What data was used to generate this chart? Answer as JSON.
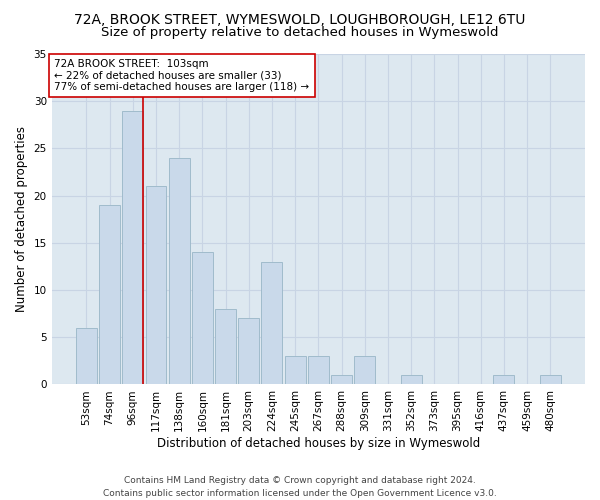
{
  "title_line1": "72A, BROOK STREET, WYMESWOLD, LOUGHBOROUGH, LE12 6TU",
  "title_line2": "Size of property relative to detached houses in Wymeswold",
  "xlabel": "Distribution of detached houses by size in Wymeswold",
  "ylabel": "Number of detached properties",
  "categories": [
    "53sqm",
    "74sqm",
    "96sqm",
    "117sqm",
    "138sqm",
    "160sqm",
    "181sqm",
    "203sqm",
    "224sqm",
    "245sqm",
    "267sqm",
    "288sqm",
    "309sqm",
    "331sqm",
    "352sqm",
    "373sqm",
    "395sqm",
    "416sqm",
    "437sqm",
    "459sqm",
    "480sqm"
  ],
  "values": [
    6,
    19,
    29,
    21,
    24,
    14,
    8,
    7,
    13,
    3,
    3,
    1,
    3,
    0,
    1,
    0,
    0,
    0,
    1,
    0,
    1
  ],
  "bar_color": "#c9d9ea",
  "bar_edge_color": "#a0bbcc",
  "vline_x_index": 2,
  "vline_color": "#cc0000",
  "annotation_line1": "72A BROOK STREET:  103sqm",
  "annotation_line2": "← 22% of detached houses are smaller (33)",
  "annotation_line3": "77% of semi-detached houses are larger (118) →",
  "annotation_box_color": "#ffffff",
  "annotation_box_edge_color": "#cc0000",
  "ylim": [
    0,
    35
  ],
  "yticks": [
    0,
    5,
    10,
    15,
    20,
    25,
    30,
    35
  ],
  "grid_color": "#c8d4e4",
  "bg_color": "#dde8f0",
  "footer_line1": "Contains HM Land Registry data © Crown copyright and database right 2024.",
  "footer_line2": "Contains public sector information licensed under the Open Government Licence v3.0.",
  "title_fontsize": 10,
  "subtitle_fontsize": 9.5,
  "axis_label_fontsize": 8.5,
  "tick_fontsize": 7.5,
  "annotation_fontsize": 7.5,
  "footer_fontsize": 6.5
}
